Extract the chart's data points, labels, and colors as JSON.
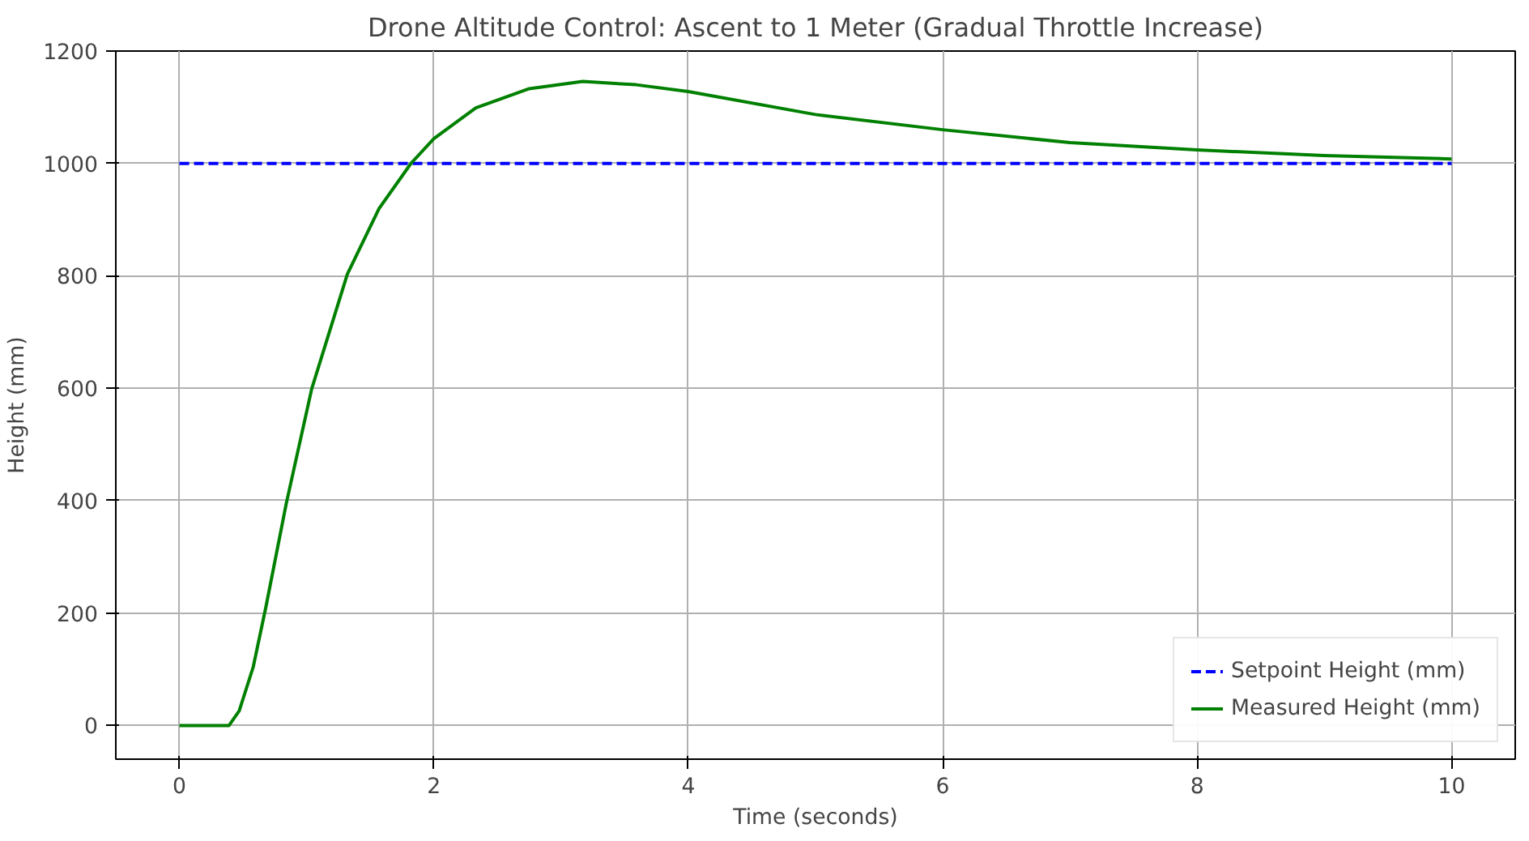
{
  "chart_data": {
    "type": "line",
    "title": "Drone Altitude Control: Ascent to 1 Meter (Gradual Throttle Increase)",
    "xlabel": "Time (seconds)",
    "ylabel": "Height (mm)",
    "xlim": [
      -0.5,
      10.5
    ],
    "ylim": [
      -60,
      1200
    ],
    "xticks": [
      0,
      2,
      4,
      6,
      8,
      10
    ],
    "yticks": [
      0,
      200,
      400,
      600,
      800,
      1000,
      1200
    ],
    "grid": true,
    "legend": "bottom right",
    "series": [
      {
        "name": "Setpoint Height (mm)",
        "color": "#0000ff",
        "line_style": "dashed",
        "x": [
          0,
          10
        ],
        "values": [
          1000,
          1000
        ]
      },
      {
        "name": "Measured Height (mm)",
        "color": "#008000",
        "line_style": "solid",
        "x": [
          0,
          0.39,
          0.47,
          0.58,
          0.68,
          0.84,
          1.04,
          1.32,
          1.57,
          1.82,
          2.0,
          2.33,
          2.75,
          3.17,
          3.59,
          4,
          5,
          6,
          7,
          8,
          9,
          10
        ],
        "values": [
          0,
          0,
          26,
          104,
          211,
          395,
          599,
          803,
          920,
          1000,
          1044,
          1099,
          1133,
          1146,
          1140,
          1128,
          1087,
          1060,
          1037,
          1024,
          1014,
          1008
        ]
      }
    ]
  }
}
